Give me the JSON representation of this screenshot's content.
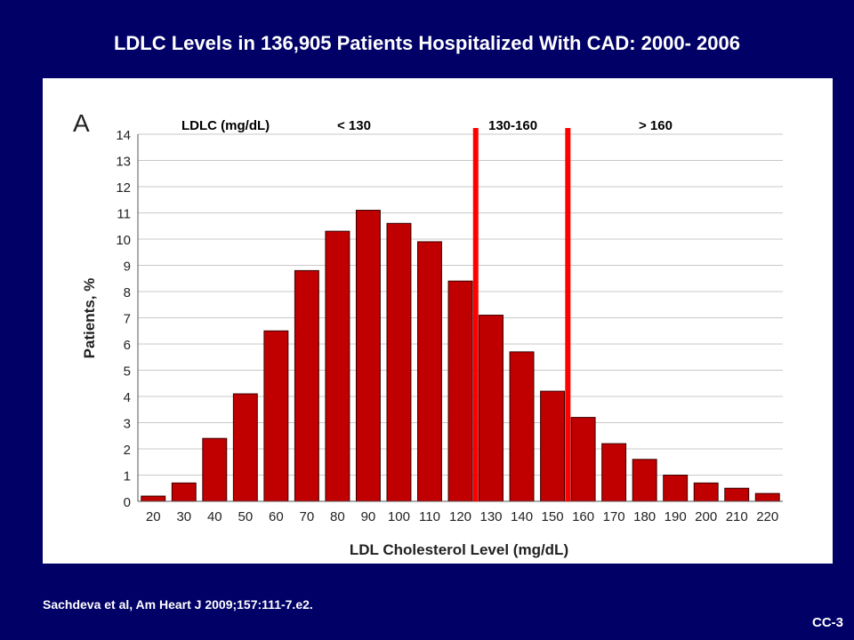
{
  "slide": {
    "title": "LDLC Levels in 136,905 Patients Hospitalized With CAD: 2000- 2006",
    "citation": "Sachdeva et al, Am Heart J 2009;157:111-7.e2.",
    "slide_id": "CC-3"
  },
  "colors": {
    "background": "#000066",
    "bar": "#c00000",
    "cutoff_line": "#ff0000"
  },
  "chart_data": {
    "type": "bar",
    "panel_label": "A",
    "title": "",
    "xlabel": "LDL Cholesterol Level (mg/dL)",
    "ylabel": "Patients, %",
    "ylim": [
      0,
      14
    ],
    "yticks": [
      0,
      1,
      2,
      3,
      4,
      5,
      6,
      7,
      8,
      9,
      10,
      11,
      12,
      13,
      14
    ],
    "grid": true,
    "categories": [
      "20",
      "30",
      "40",
      "50",
      "60",
      "70",
      "80",
      "90",
      "100",
      "110",
      "120",
      "130",
      "140",
      "150",
      "160",
      "170",
      "180",
      "190",
      "200",
      "210",
      "220"
    ],
    "values": [
      0.2,
      0.7,
      2.4,
      4.1,
      6.5,
      8.8,
      10.3,
      11.1,
      10.6,
      9.9,
      8.4,
      7.1,
      5.7,
      4.2,
      3.2,
      2.2,
      1.6,
      1.0,
      0.7,
      0.5,
      0.3
    ],
    "annotations": {
      "range_title": "LDLC (mg/dL)",
      "ranges": [
        "< 130",
        "130-160",
        "> 160"
      ],
      "cutoffs": [
        130,
        160
      ]
    }
  }
}
